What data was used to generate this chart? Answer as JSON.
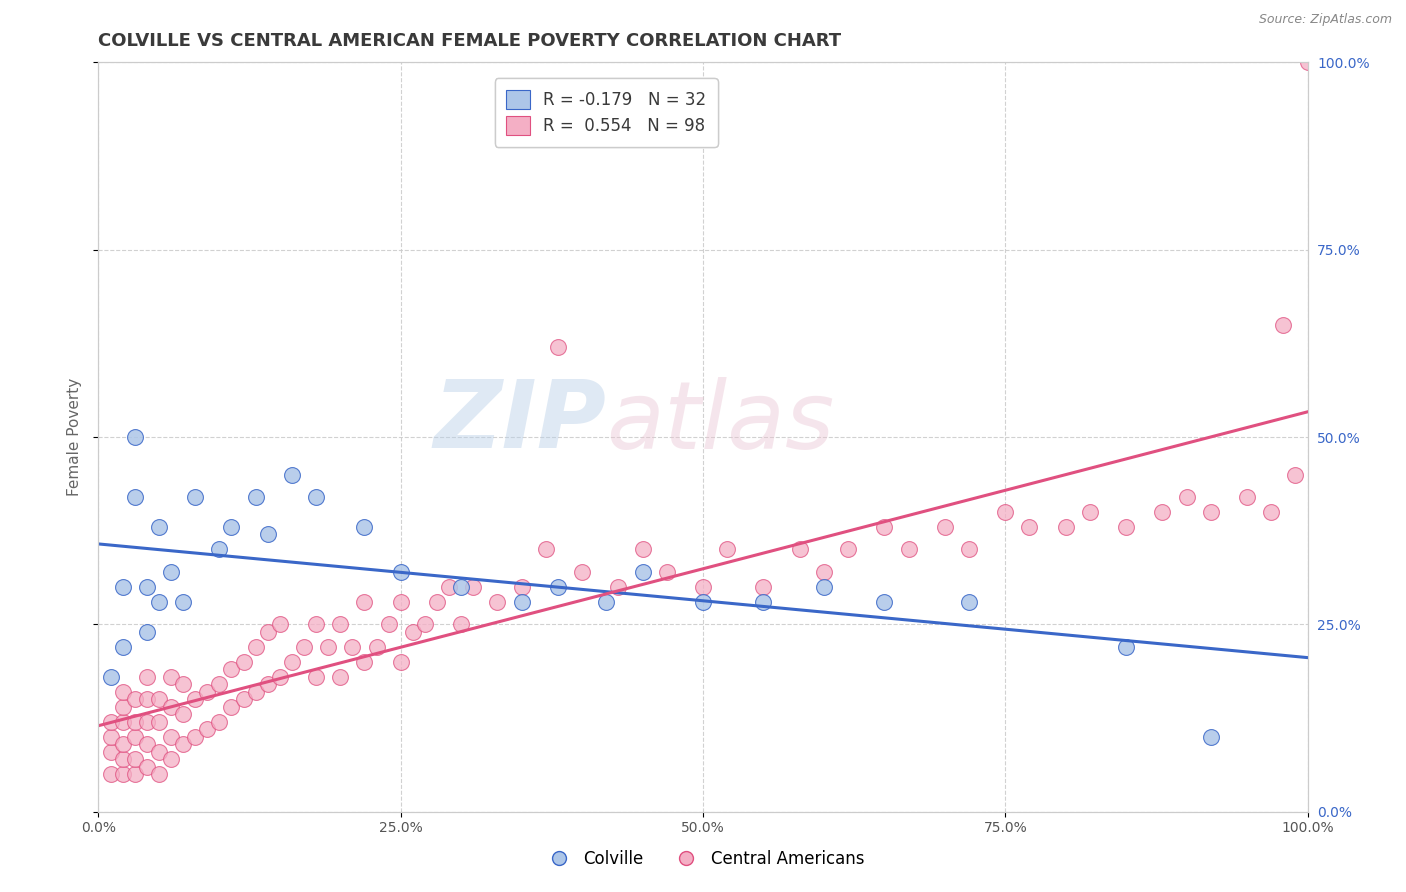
{
  "title": "COLVILLE VS CENTRAL AMERICAN FEMALE POVERTY CORRELATION CHART",
  "source": "Source: ZipAtlas.com",
  "ylabel": "Female Poverty",
  "xlim": [
    0.0,
    1.0
  ],
  "ylim": [
    0.0,
    1.0
  ],
  "xtick_labels": [
    "0.0%",
    "25.0%",
    "50.0%",
    "75.0%",
    "100.0%"
  ],
  "xtick_positions": [
    0.0,
    0.25,
    0.5,
    0.75,
    1.0
  ],
  "right_ytick_labels": [
    "0.0%",
    "25.0%",
    "50.0%",
    "75.0%",
    "100.0%"
  ],
  "right_ytick_positions": [
    0.0,
    0.25,
    0.5,
    0.75,
    1.0
  ],
  "colville_color": "#adc6e8",
  "central_american_color": "#f4afc5",
  "colville_line_color": "#3a67c8",
  "central_american_line_color": "#e05080",
  "colville_R": -0.179,
  "colville_N": 32,
  "central_american_R": 0.554,
  "central_american_N": 98,
  "colville_x": [
    0.01,
    0.02,
    0.02,
    0.03,
    0.03,
    0.04,
    0.04,
    0.05,
    0.05,
    0.06,
    0.07,
    0.08,
    0.1,
    0.11,
    0.13,
    0.14,
    0.16,
    0.18,
    0.22,
    0.25,
    0.3,
    0.35,
    0.38,
    0.42,
    0.45,
    0.5,
    0.55,
    0.6,
    0.65,
    0.72,
    0.85,
    0.92
  ],
  "colville_y": [
    0.18,
    0.3,
    0.22,
    0.42,
    0.5,
    0.24,
    0.3,
    0.28,
    0.38,
    0.32,
    0.28,
    0.42,
    0.35,
    0.38,
    0.42,
    0.37,
    0.45,
    0.42,
    0.38,
    0.32,
    0.3,
    0.28,
    0.3,
    0.28,
    0.32,
    0.28,
    0.28,
    0.3,
    0.28,
    0.28,
    0.22,
    0.1
  ],
  "central_american_x": [
    0.01,
    0.01,
    0.01,
    0.01,
    0.02,
    0.02,
    0.02,
    0.02,
    0.02,
    0.02,
    0.03,
    0.03,
    0.03,
    0.03,
    0.03,
    0.04,
    0.04,
    0.04,
    0.04,
    0.04,
    0.05,
    0.05,
    0.05,
    0.05,
    0.06,
    0.06,
    0.06,
    0.06,
    0.07,
    0.07,
    0.07,
    0.08,
    0.08,
    0.09,
    0.09,
    0.1,
    0.1,
    0.11,
    0.11,
    0.12,
    0.12,
    0.13,
    0.13,
    0.14,
    0.14,
    0.15,
    0.15,
    0.16,
    0.17,
    0.18,
    0.18,
    0.19,
    0.2,
    0.2,
    0.21,
    0.22,
    0.22,
    0.23,
    0.24,
    0.25,
    0.25,
    0.26,
    0.27,
    0.28,
    0.29,
    0.3,
    0.31,
    0.33,
    0.35,
    0.37,
    0.38,
    0.4,
    0.43,
    0.45,
    0.47,
    0.5,
    0.52,
    0.55,
    0.58,
    0.6,
    0.62,
    0.65,
    0.67,
    0.7,
    0.72,
    0.75,
    0.77,
    0.8,
    0.82,
    0.85,
    0.88,
    0.9,
    0.92,
    0.95,
    0.97,
    0.98,
    0.99,
    1.0
  ],
  "central_american_y": [
    0.05,
    0.08,
    0.1,
    0.12,
    0.05,
    0.07,
    0.09,
    0.12,
    0.14,
    0.16,
    0.05,
    0.07,
    0.1,
    0.12,
    0.15,
    0.06,
    0.09,
    0.12,
    0.15,
    0.18,
    0.05,
    0.08,
    0.12,
    0.15,
    0.07,
    0.1,
    0.14,
    0.18,
    0.09,
    0.13,
    0.17,
    0.1,
    0.15,
    0.11,
    0.16,
    0.12,
    0.17,
    0.14,
    0.19,
    0.15,
    0.2,
    0.16,
    0.22,
    0.17,
    0.24,
    0.18,
    0.25,
    0.2,
    0.22,
    0.18,
    0.25,
    0.22,
    0.18,
    0.25,
    0.22,
    0.2,
    0.28,
    0.22,
    0.25,
    0.2,
    0.28,
    0.24,
    0.25,
    0.28,
    0.3,
    0.25,
    0.3,
    0.28,
    0.3,
    0.35,
    0.62,
    0.32,
    0.3,
    0.35,
    0.32,
    0.3,
    0.35,
    0.3,
    0.35,
    0.32,
    0.35,
    0.38,
    0.35,
    0.38,
    0.35,
    0.4,
    0.38,
    0.38,
    0.4,
    0.38,
    0.4,
    0.42,
    0.4,
    0.42,
    0.4,
    0.65,
    0.45,
    1.0
  ],
  "background_color": "#ffffff",
  "grid_color": "#cccccc",
  "title_fontsize": 13,
  "label_fontsize": 11,
  "tick_fontsize": 10,
  "legend_fontsize": 12,
  "watermark_color": "#c8d8e8",
  "watermark_alpha": 0.5
}
